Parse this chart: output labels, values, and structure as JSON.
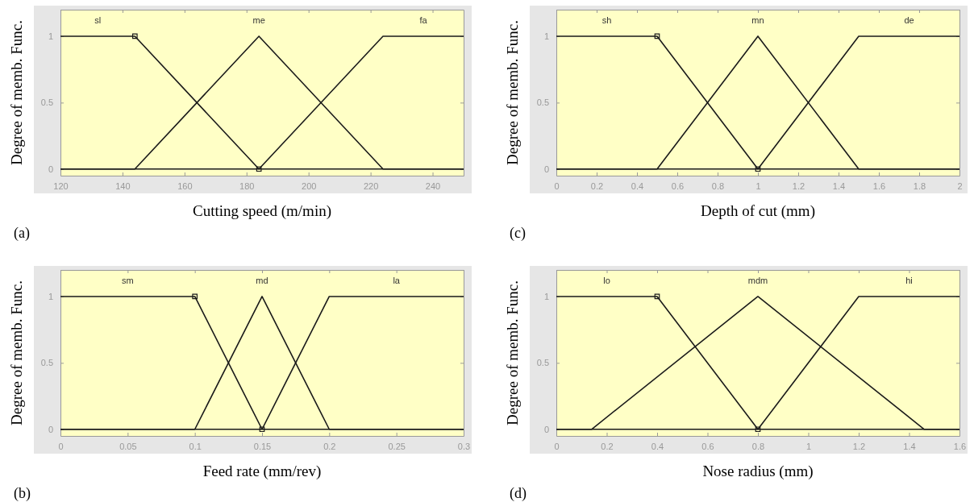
{
  "chart_data": [
    {
      "type": "line",
      "xlabel": "Cutting speed (m/min)",
      "ylabel": "Degree of memb. Func.",
      "annotations": [
        "(a)"
      ],
      "xlim": [
        120,
        250
      ],
      "xticks": [
        120,
        140,
        160,
        180,
        200,
        220,
        240
      ],
      "ylim": [
        -0.05,
        1.2
      ],
      "yticks": [
        0,
        0.5,
        1
      ],
      "grid": false,
      "legend": false,
      "series": [
        {
          "name": "sl",
          "color": "#1a1a1a",
          "x": [
            120,
            144,
            184,
            250
          ],
          "values": [
            1,
            1,
            0,
            0
          ]
        },
        {
          "name": "me",
          "color": "#1a1a1a",
          "x": [
            120,
            144,
            184,
            224,
            250
          ],
          "values": [
            0,
            0,
            1,
            0,
            0
          ]
        },
        {
          "name": "fa",
          "color": "#1a1a1a",
          "x": [
            120,
            184,
            224,
            250
          ],
          "values": [
            0,
            0,
            1,
            1
          ]
        },
        {
          "type": "scatter",
          "marker": "square",
          "color": "#1a1a1a",
          "x": [
            144,
            184
          ],
          "values": [
            1,
            0
          ]
        }
      ]
    },
    {
      "type": "line",
      "xlabel": "Depth of cut (mm)",
      "ylabel": "Degree of memb. Func.",
      "annotations": [
        "(c)"
      ],
      "xlim": [
        0,
        2
      ],
      "xticks": [
        0,
        0.2,
        0.4,
        0.6,
        0.8,
        1,
        1.2,
        1.4,
        1.6,
        1.8,
        2
      ],
      "ylim": [
        -0.05,
        1.2
      ],
      "yticks": [
        0,
        0.5,
        1
      ],
      "grid": false,
      "legend": false,
      "series": [
        {
          "name": "sh",
          "color": "#1a1a1a",
          "x": [
            0,
            0.5,
            1,
            2
          ],
          "values": [
            1,
            1,
            0,
            0
          ]
        },
        {
          "name": "mn",
          "color": "#1a1a1a",
          "x": [
            0,
            0.5,
            1,
            1.5,
            2
          ],
          "values": [
            0,
            0,
            1,
            0,
            0
          ]
        },
        {
          "name": "de",
          "color": "#1a1a1a",
          "x": [
            0,
            1,
            1.5,
            2
          ],
          "values": [
            0,
            0,
            1,
            1
          ]
        },
        {
          "type": "scatter",
          "marker": "square",
          "color": "#1a1a1a",
          "x": [
            0.5,
            1
          ],
          "values": [
            1,
            0
          ]
        }
      ]
    },
    {
      "type": "line",
      "xlabel": "Feed rate (mm/rev)",
      "ylabel": "Degree of memb. Func.",
      "annotations": [
        "(b)"
      ],
      "xlim": [
        0,
        0.3
      ],
      "xticks": [
        0,
        0.05,
        0.1,
        0.15,
        0.2,
        0.25,
        0.3
      ],
      "ylim": [
        -0.05,
        1.2
      ],
      "yticks": [
        0,
        0.5,
        1
      ],
      "grid": false,
      "legend": false,
      "series": [
        {
          "name": "sm",
          "color": "#1a1a1a",
          "x": [
            0,
            0.1,
            0.15,
            0.3
          ],
          "values": [
            1,
            1,
            0,
            0
          ]
        },
        {
          "name": "md",
          "color": "#1a1a1a",
          "x": [
            0,
            0.1,
            0.15,
            0.2,
            0.3
          ],
          "values": [
            0,
            0,
            1,
            0,
            0
          ]
        },
        {
          "name": "la",
          "color": "#1a1a1a",
          "x": [
            0,
            0.15,
            0.2,
            0.3
          ],
          "values": [
            0,
            0,
            1,
            1
          ]
        },
        {
          "type": "scatter",
          "marker": "square",
          "color": "#1a1a1a",
          "x": [
            0.1,
            0.15
          ],
          "values": [
            1,
            0
          ]
        }
      ]
    },
    {
      "type": "line",
      "xlabel": "Nose radius (mm)",
      "ylabel": "Degree of memb. Func.",
      "annotations": [
        "(d)"
      ],
      "xlim": [
        0,
        1.6
      ],
      "xticks": [
        0,
        0.2,
        0.4,
        0.6,
        0.8,
        1,
        1.2,
        1.4,
        1.6
      ],
      "ylim": [
        -0.05,
        1.2
      ],
      "yticks": [
        0,
        0.5,
        1
      ],
      "grid": false,
      "legend": false,
      "series": [
        {
          "name": "lo",
          "color": "#1a1a1a",
          "x": [
            0,
            0.4,
            0.8,
            1.6
          ],
          "values": [
            1,
            1,
            0,
            0
          ]
        },
        {
          "name": "mdm",
          "color": "#1a1a1a",
          "x": [
            0,
            0.14,
            0.8,
            1.46,
            1.6
          ],
          "values": [
            0,
            0,
            1,
            0,
            0
          ]
        },
        {
          "name": "hi",
          "color": "#1a1a1a",
          "x": [
            0,
            0.8,
            1.2,
            1.6
          ],
          "values": [
            0,
            0,
            1,
            1
          ]
        },
        {
          "type": "scatter",
          "marker": "square",
          "color": "#1a1a1a",
          "x": [
            0.4,
            0.8
          ],
          "values": [
            1,
            0
          ]
        }
      ]
    }
  ]
}
